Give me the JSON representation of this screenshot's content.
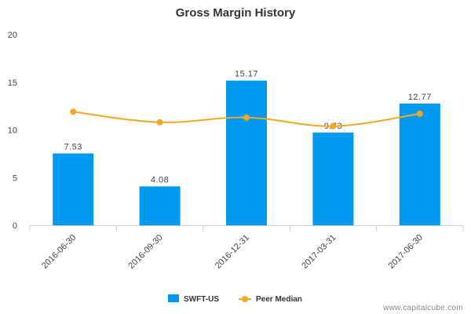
{
  "chart_data": {
    "type": "bar",
    "title": "Gross Margin History",
    "categories": [
      "2016-06-30",
      "2016-09-30",
      "2016-12-31",
      "2017-03-31",
      "2017-06-30"
    ],
    "series": [
      {
        "name": "SWFT-US",
        "kind": "bar",
        "color": "#0099ee",
        "values": [
          7.53,
          4.08,
          15.17,
          9.73,
          12.77
        ],
        "data_labels": [
          "7.53",
          "4.08",
          "15.17",
          "9.73",
          "12.77"
        ]
      },
      {
        "name": "Peer Median",
        "kind": "line",
        "color": "#f5a623",
        "values": [
          11.9,
          10.8,
          11.3,
          10.4,
          11.7
        ]
      }
    ],
    "ylim": [
      0,
      20
    ],
    "yticks": [
      "0",
      "5",
      "10",
      "15",
      "20"
    ],
    "xlabel": "",
    "ylabel": "",
    "grid": false,
    "legend": "bottom-center"
  },
  "credit": "www.capitalcube.com"
}
